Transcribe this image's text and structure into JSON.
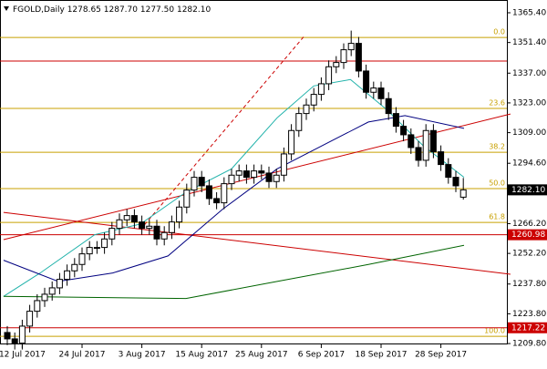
{
  "chart_data": {
    "type": "candlestick",
    "header": {
      "symbol": "FGOLD,Daily",
      "ohlc": [
        "1278.65",
        "1287.70",
        "1277.50",
        "1282.10"
      ]
    },
    "categories": [
      null,
      null,
      "12 Jul 2017",
      null,
      null,
      null,
      null,
      null,
      null,
      null,
      "24 Jul 2017",
      null,
      null,
      null,
      null,
      null,
      null,
      null,
      "3 Aug 2017",
      null,
      null,
      null,
      null,
      null,
      null,
      null,
      "15 Aug 2017",
      null,
      null,
      null,
      null,
      null,
      null,
      null,
      "25 Aug 2017",
      null,
      null,
      null,
      null,
      null,
      null,
      null,
      "6 Sep 2017",
      null,
      null,
      null,
      null,
      null,
      null,
      null,
      "18 Sep 2017",
      null,
      null,
      null,
      null,
      null,
      null,
      null,
      "28 Sep 2017",
      null,
      null,
      null
    ],
    "open": [
      1215,
      1212,
      1210,
      1218,
      1225,
      1230,
      1233,
      1236,
      1240,
      1244,
      1247,
      1252,
      1255,
      1255,
      1259,
      1264,
      1268,
      1270,
      1267,
      1264,
      1265,
      1259,
      1262,
      1267,
      1274,
      1282,
      1288,
      1284,
      1278,
      1276,
      1285,
      1289,
      1291,
      1288,
      1291,
      1290,
      1286,
      1289,
      1299,
      1310,
      1318,
      1322,
      1327,
      1332,
      1340,
      1342,
      1348,
      1351,
      1338,
      1328,
      1330,
      1325,
      1318,
      1312,
      1308,
      1302,
      1296,
      1310,
      1300,
      1294,
      1288,
      1278.65
    ],
    "high": [
      1218,
      1215,
      1221,
      1228,
      1233,
      1236,
      1239,
      1243,
      1247,
      1250,
      1255,
      1258,
      1258,
      1262,
      1267,
      1271,
      1273,
      1273,
      1270,
      1268,
      1268,
      1265,
      1270,
      1277,
      1285,
      1291,
      1291,
      1287,
      1281,
      1288,
      1292,
      1294,
      1294,
      1294,
      1294,
      1293,
      1292,
      1302,
      1313,
      1321,
      1325,
      1330,
      1335,
      1343,
      1345,
      1351,
      1357,
      1354,
      1341,
      1333,
      1333,
      1328,
      1321,
      1315,
      1311,
      1305,
      1313,
      1313,
      1303,
      1297,
      1291,
      1287.7
    ],
    "low": [
      1209,
      1207,
      1207,
      1215,
      1222,
      1227,
      1230,
      1233,
      1237,
      1241,
      1244,
      1249,
      1252,
      1252,
      1256,
      1261,
      1265,
      1264,
      1261,
      1261,
      1256,
      1256,
      1259,
      1264,
      1271,
      1279,
      1281,
      1275,
      1273,
      1273,
      1282,
      1286,
      1285,
      1285,
      1287,
      1283,
      1283,
      1286,
      1296,
      1307,
      1315,
      1319,
      1324,
      1329,
      1337,
      1339,
      1345,
      1335,
      1325,
      1325,
      1322,
      1315,
      1309,
      1305,
      1299,
      1293,
      1293,
      1297,
      1291,
      1285,
      1281,
      1277.5
    ],
    "close": [
      1212,
      1210,
      1218,
      1225,
      1230,
      1233,
      1236,
      1240,
      1244,
      1247,
      1252,
      1255,
      1255,
      1259,
      1264,
      1268,
      1270,
      1267,
      1264,
      1265,
      1259,
      1262,
      1267,
      1274,
      1282,
      1288,
      1284,
      1278,
      1276,
      1285,
      1289,
      1291,
      1288,
      1291,
      1290,
      1286,
      1289,
      1299,
      1310,
      1318,
      1322,
      1327,
      1332,
      1340,
      1342,
      1348,
      1351,
      1338,
      1328,
      1330,
      1325,
      1318,
      1312,
      1308,
      1302,
      1296,
      1310,
      1300,
      1294,
      1288,
      1284,
      1282.1
    ],
    "ylim": [
      1209.4,
      1371.4
    ],
    "yticks": [
      {
        "value": 1365.4,
        "label": "1365.40"
      },
      {
        "value": 1351.4,
        "label": "1351.40"
      },
      {
        "value": 1337,
        "label": "1337.00"
      },
      {
        "value": 1323,
        "label": "1323.00"
      },
      {
        "value": 1309,
        "label": "1309.00"
      },
      {
        "value": 1294.6,
        "label": "1294.60"
      },
      {
        "value": 1266.2,
        "label": "1266.20"
      },
      {
        "value": 1252.2,
        "label": "1252.20"
      },
      {
        "value": 1237.8,
        "label": "1237.80"
      },
      {
        "value": 1223.8,
        "label": "1223.80"
      },
      {
        "value": 1209.8,
        "label": "1209.80"
      }
    ],
    "lines": [
      {
        "color": "#20b2aa",
        "x": [
          -0.5,
          4.4,
          11.7,
          17.8,
          23.9,
          30,
          36.1,
          41,
          45.9,
          50.7,
          55.6,
          61.1
        ],
        "values": [
          1232,
          1243,
          1261,
          1266,
          1281,
          1292,
          1316,
          1331,
          1334,
          1320,
          1303,
          1288
        ]
      },
      {
        "color": "#000080",
        "x": [
          -0.5,
          6.8,
          14.1,
          21.5,
          28.8,
          36.1,
          42.2,
          48.3,
          53.2,
          61.1
        ],
        "values": [
          1249,
          1239,
          1243,
          1251,
          1273,
          1292,
          1303,
          1314,
          1317,
          1311
        ]
      },
      {
        "color": "#006400",
        "x": [
          -0.5,
          23.9,
          36.1,
          48.3,
          61.1
        ],
        "values": [
          1232,
          1231,
          1239,
          1247,
          1256
        ]
      }
    ],
    "trendlines": [
      {
        "color": "#cc0000",
        "dashed": false,
        "x": [
          -0.5,
          67.3
        ],
        "values": [
          1271.5,
          1242.4
        ]
      },
      {
        "color": "#cc0000",
        "dashed": false,
        "x": [
          -0.5,
          67.3
        ],
        "values": [
          1258.7,
          1317.8
        ]
      },
      {
        "color": "#cc0000",
        "dashed": true,
        "x": [
          17.8,
          39.7
        ],
        "values": [
          1263.4,
          1354.3
        ]
      }
    ],
    "fib_color": "#c8a000",
    "fib_levels": [
      {
        "value": 1353.8,
        "label": "0.0"
      },
      {
        "value": 1320.4,
        "label": "23.6"
      },
      {
        "value": 1299.8,
        "label": "38.2"
      },
      {
        "value": 1282.7,
        "label": "50.0"
      },
      {
        "value": 1266.8,
        "label": "61.8"
      },
      {
        "value": 1213.2,
        "label": "100.0"
      }
    ],
    "hlines": [
      {
        "value": 1342.7,
        "color": "#cc0000"
      }
    ],
    "price_markers": [
      {
        "value": 1282.1,
        "label": "1282.10",
        "color": "#000000",
        "line": false
      },
      {
        "value": 1260.98,
        "label": "1260.98",
        "color": "#cc0000",
        "line": true
      },
      {
        "value": 1217.22,
        "label": "1217.22",
        "color": "#cc0000",
        "line": true
      }
    ]
  }
}
